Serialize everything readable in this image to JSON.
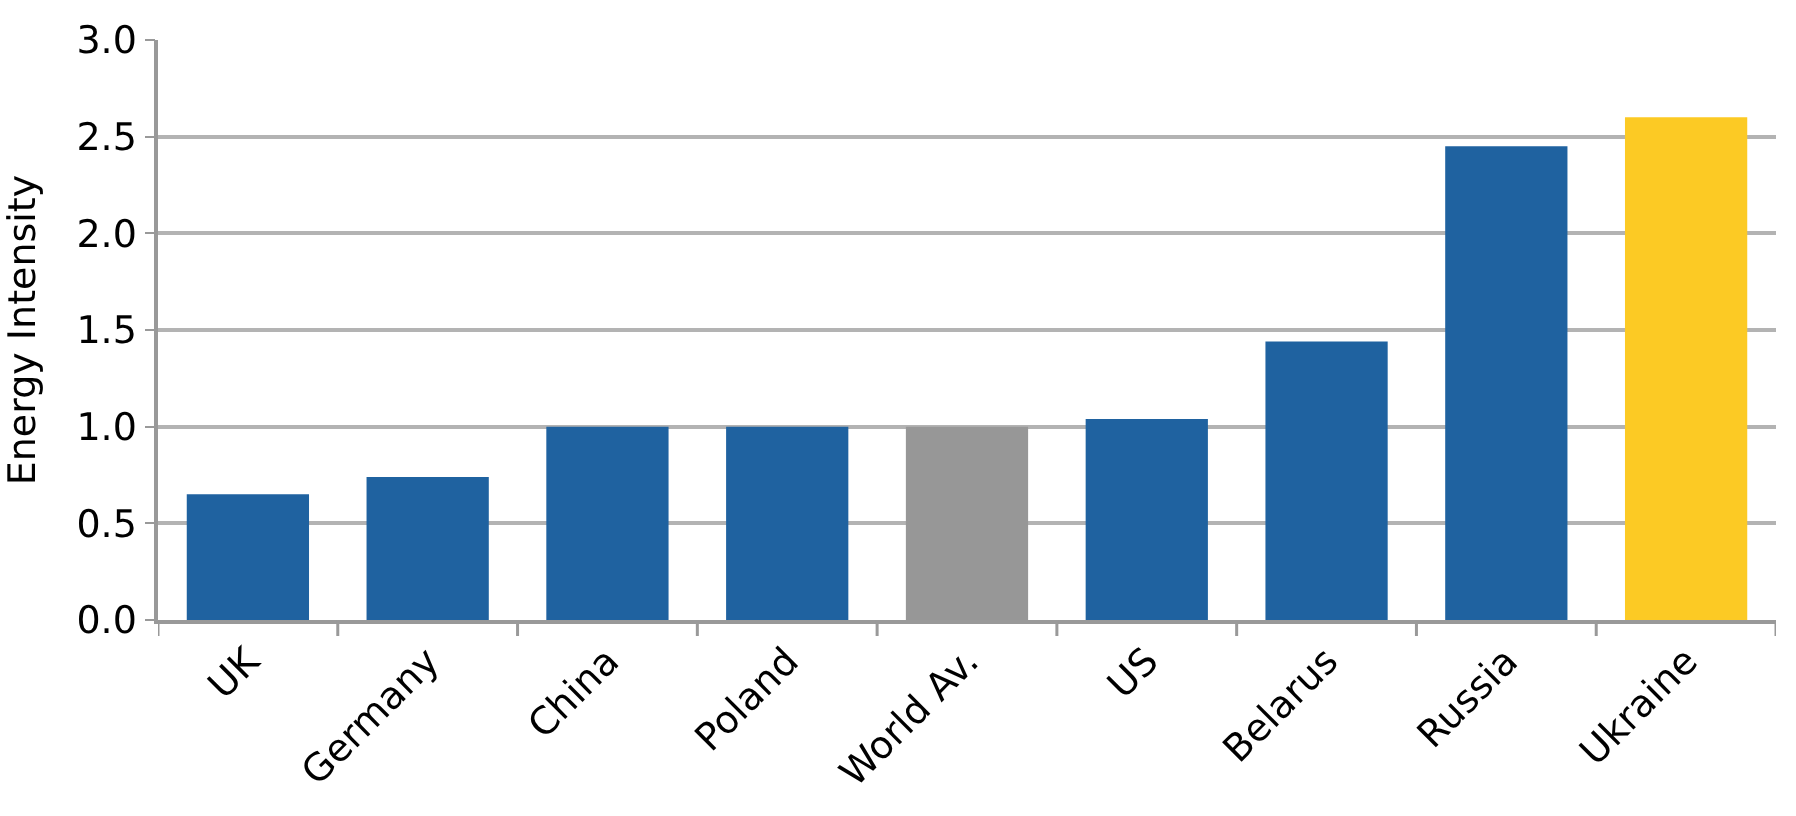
{
  "chart_data": {
    "type": "bar",
    "ylabel": "Energy Intensity",
    "categories": [
      "UK",
      "Germany",
      "China",
      "Poland",
      "World Av.",
      "US",
      "Belarus",
      "Russia",
      "Ukraine"
    ],
    "values": [
      0.65,
      0.74,
      1.0,
      1.0,
      1.0,
      1.04,
      1.44,
      2.45,
      2.6
    ],
    "colors": [
      "#1f62a0",
      "#1f62a0",
      "#1f62a0",
      "#1f62a0",
      "#979797",
      "#1f62a0",
      "#1f62a0",
      "#1f62a0",
      "#fcca24"
    ],
    "ylim": [
      0,
      3.0
    ],
    "yticks": [
      {
        "value": 0,
        "label": "0.0"
      },
      {
        "value": 0.5,
        "label": "0.5"
      },
      {
        "value": 1,
        "label": "1.0"
      },
      {
        "value": 1.5,
        "label": "1.5"
      },
      {
        "value": 2,
        "label": "2.0"
      },
      {
        "value": 2.5,
        "label": "2.5"
      },
      {
        "value": 3,
        "label": "3.0"
      }
    ],
    "grid": "y"
  }
}
